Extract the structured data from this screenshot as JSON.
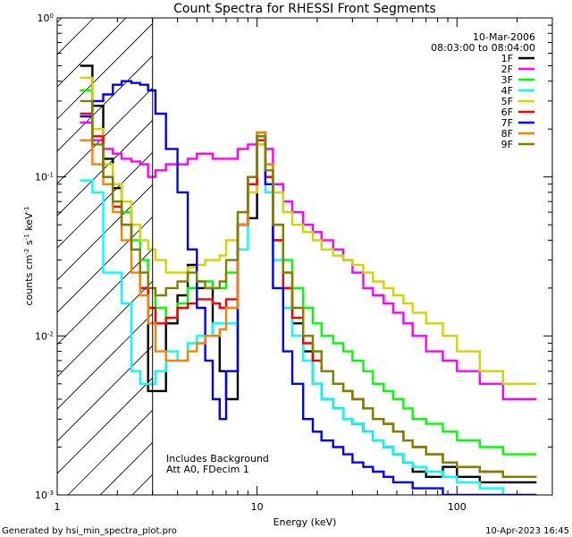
{
  "chart_data": {
    "type": "line",
    "title": "Count Spectra for RHESSI Front Segments",
    "xlabel": "Energy (keV)",
    "ylabel": "counts cm^-2 s^-1 keV^-1",
    "ylabel_parts": {
      "base": "counts cm",
      "e1": "-2",
      "mid1": " s",
      "e2": "-1",
      "mid2": " keV",
      "e3": "-1"
    },
    "xscale": "log",
    "yscale": "log",
    "xlim": [
      1,
      300
    ],
    "ylim": [
      0.001,
      1
    ],
    "x_ticks": [
      {
        "value": 1,
        "label": "1"
      },
      {
        "value": 10,
        "label": "10"
      },
      {
        "value": 100,
        "label": "100"
      }
    ],
    "y_ticks": [
      {
        "value": 1,
        "base": "10",
        "exp": "0"
      },
      {
        "value": 0.1,
        "base": "10",
        "exp": "-1"
      },
      {
        "value": 0.01,
        "base": "10",
        "exp": "-2"
      },
      {
        "value": 0.001,
        "base": "10",
        "exp": "-3"
      }
    ],
    "date": "10-Mar-2006",
    "time_range": "08:03:00 to 08:04:00",
    "annotations": [
      "Includes Background",
      "Att A0, FDecim 1"
    ],
    "attenuator_cutoff_kev": 3,
    "series": [
      {
        "name": "1F",
        "color": "#000000",
        "values": [
          0.5,
          0.28,
          0.13,
          0.085,
          0.06,
          0.035,
          0.02,
          0.0045,
          0.0045,
          0.012,
          0.018,
          0.028,
          0.02,
          0.02,
          0.01,
          0.006,
          0.004,
          0.05,
          0.055,
          0.18,
          0.1,
          0.04,
          0.02,
          0.012,
          0.008,
          0.005,
          0.004,
          0.0035,
          0.003,
          0.0028,
          0.0025,
          0.0022,
          0.002,
          0.0018,
          0.0016,
          0.0014,
          0.0013,
          0.0015,
          0.0013,
          0.0012,
          0.0012
        ]
      },
      {
        "name": "2F",
        "color": "#ff00ff",
        "values": [
          0.22,
          0.17,
          0.15,
          0.14,
          0.13,
          0.125,
          0.12,
          0.1,
          0.11,
          0.12,
          0.12,
          0.13,
          0.14,
          0.14,
          0.13,
          0.13,
          0.13,
          0.15,
          0.16,
          0.18,
          0.15,
          0.09,
          0.07,
          0.06,
          0.05,
          0.045,
          0.04,
          0.035,
          0.03,
          0.025,
          0.02,
          0.018,
          0.016,
          0.014,
          0.012,
          0.01,
          0.008,
          0.007,
          0.006,
          0.005,
          0.004
        ]
      },
      {
        "name": "3F",
        "color": "#00ff00",
        "values": [
          0.35,
          0.18,
          0.12,
          0.09,
          0.06,
          0.04,
          0.03,
          0.02,
          0.015,
          0.013,
          0.016,
          0.02,
          0.022,
          0.022,
          0.02,
          0.02,
          0.025,
          0.06,
          0.1,
          0.19,
          0.12,
          0.05,
          0.03,
          0.02,
          0.015,
          0.012,
          0.01,
          0.009,
          0.008,
          0.007,
          0.006,
          0.005,
          0.0045,
          0.004,
          0.0035,
          0.003,
          0.0028,
          0.0025,
          0.0022,
          0.002,
          0.0018
        ]
      },
      {
        "name": "4F",
        "color": "#00ffff",
        "values": [
          0.095,
          0.08,
          0.025,
          0.025,
          0.016,
          0.006,
          0.005,
          0.005,
          0.006,
          0.008,
          0.007,
          0.009,
          0.01,
          0.01,
          0.012,
          0.012,
          0.012,
          0.035,
          0.1,
          0.16,
          0.08,
          0.03,
          0.015,
          0.01,
          0.007,
          0.005,
          0.004,
          0.0035,
          0.003,
          0.0028,
          0.0025,
          0.0022,
          0.002,
          0.0018,
          0.0016,
          0.0015,
          0.0014,
          0.0013,
          0.0012,
          0.0011,
          0.001
        ]
      },
      {
        "name": "5F",
        "color": "#d4d400",
        "values": [
          0.42,
          0.2,
          0.12,
          0.09,
          0.07,
          0.05,
          0.04,
          0.035,
          0.03,
          0.025,
          0.025,
          0.027,
          0.028,
          0.03,
          0.03,
          0.032,
          0.04,
          0.05,
          0.08,
          0.16,
          0.12,
          0.08,
          0.06,
          0.05,
          0.045,
          0.04,
          0.035,
          0.032,
          0.03,
          0.028,
          0.025,
          0.022,
          0.02,
          0.018,
          0.016,
          0.014,
          0.012,
          0.01,
          0.008,
          0.006,
          0.005
        ]
      },
      {
        "name": "6F",
        "color": "#ff0000",
        "values": [
          0.25,
          0.18,
          0.1,
          0.065,
          0.05,
          0.035,
          0.02,
          0.015,
          0.012,
          0.013,
          0.015,
          0.016,
          0.017,
          0.017,
          0.016,
          0.015,
          0.017,
          0.05,
          0.09,
          0.17,
          0.1,
          0.04,
          0.02,
          0.013,
          0.009,
          0.007,
          0.006,
          0.005,
          0.0045,
          0.004,
          0.0035,
          0.003,
          0.0028,
          0.0025,
          0.0022,
          0.002,
          0.0018,
          0.0016,
          0.0015,
          0.0014,
          0.0013
        ]
      },
      {
        "name": "7F",
        "color": "#0000ff",
        "values": [
          0.24,
          0.3,
          0.33,
          0.38,
          0.4,
          0.39,
          0.38,
          0.35,
          0.25,
          0.15,
          0.08,
          0.035,
          0.015,
          0.007,
          0.004,
          0.003,
          0.006,
          0.05,
          0.1,
          0.19,
          0.09,
          0.02,
          0.008,
          0.005,
          0.003,
          0.0025,
          0.0022,
          0.002,
          0.0018,
          0.0016,
          0.0015,
          0.0014,
          0.0013,
          0.0012,
          0.0012,
          0.0011,
          0.0011,
          0.001,
          0.001,
          0.001,
          0.001
        ]
      },
      {
        "name": "8F",
        "color": "#ff8000",
        "values": [
          0.17,
          0.12,
          0.09,
          0.06,
          0.04,
          0.025,
          0.018,
          0.012,
          0.008,
          0.007,
          0.007,
          0.008,
          0.009,
          0.01,
          0.01,
          0.011,
          0.015,
          0.05,
          0.1,
          0.19,
          0.12,
          0.05,
          0.025,
          0.015,
          0.01,
          0.008,
          0.006,
          0.005,
          0.0045,
          0.004,
          0.0035,
          0.003,
          0.0028,
          0.0025,
          0.0022,
          0.002,
          0.0018,
          0.0016,
          0.0015,
          0.0014,
          0.0013
        ]
      },
      {
        "name": "9F",
        "color": "#808000",
        "values": [
          0.3,
          0.16,
          0.1,
          0.07,
          0.05,
          0.035,
          0.025,
          0.02,
          0.018,
          0.02,
          0.022,
          0.025,
          0.022,
          0.02,
          0.02,
          0.022,
          0.03,
          0.06,
          0.1,
          0.18,
          0.11,
          0.05,
          0.025,
          0.015,
          0.01,
          0.008,
          0.006,
          0.005,
          0.0045,
          0.004,
          0.0035,
          0.003,
          0.0028,
          0.0025,
          0.0022,
          0.002,
          0.0018,
          0.0016,
          0.0015,
          0.0014,
          0.0013
        ]
      }
    ],
    "energy_edges": [
      1.3,
      1.5,
      1.7,
      1.9,
      2.1,
      2.35,
      2.6,
      2.85,
      3.1,
      3.5,
      4.0,
      4.5,
      5.0,
      5.5,
      6.0,
      6.5,
      7.0,
      8.0,
      9.0,
      10.0,
      11.0,
      12.0,
      13.5,
      15.0,
      17.0,
      19.0,
      21.0,
      24.0,
      27.0,
      30.0,
      34.0,
      38.0,
      43.0,
      48.0,
      54.0,
      60.0,
      70.0,
      85.0,
      100.0,
      130.0,
      170.0,
      250.0
    ]
  },
  "footer": {
    "left": "Generated by hsi_min_spectra_plot.pro",
    "right": "10-Apr-2023 16:45"
  }
}
